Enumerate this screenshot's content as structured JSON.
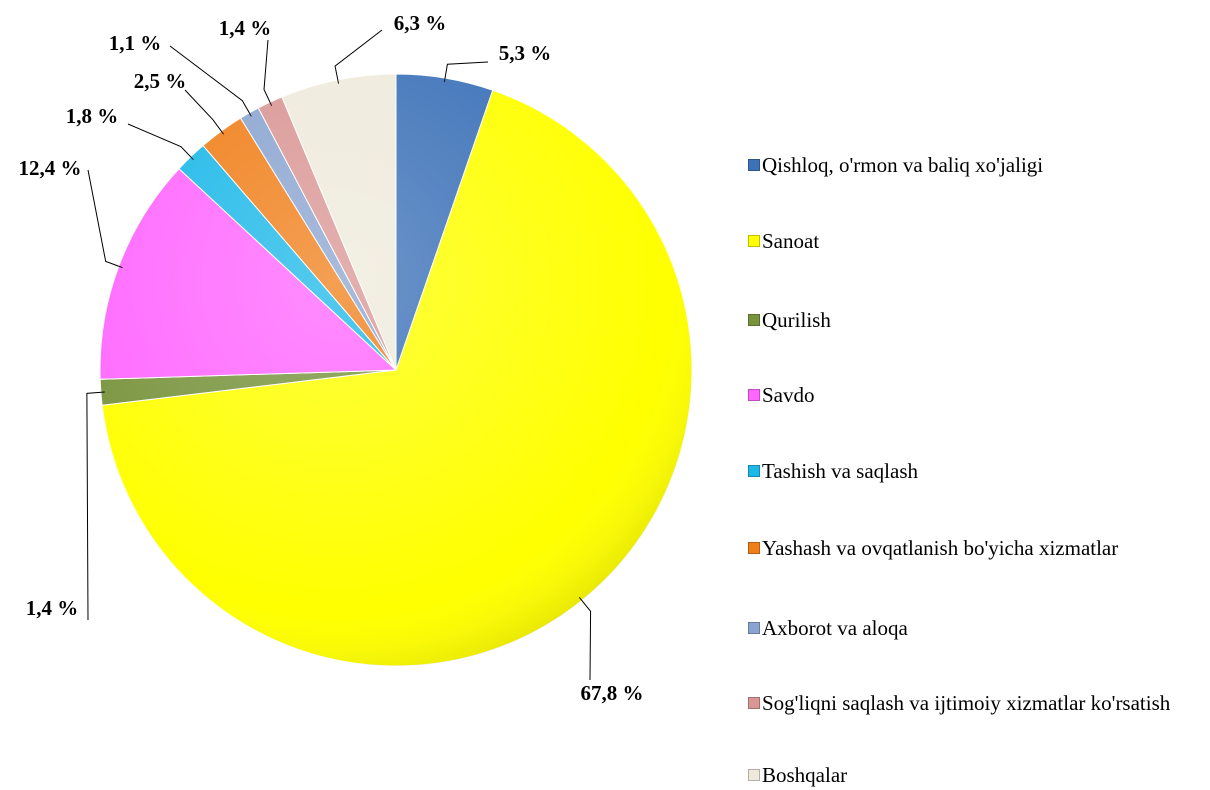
{
  "chart_data": {
    "type": "pie",
    "categories": [
      "Qishloq, o'rmon va baliq xo'jaligi",
      "Sanoat",
      "Qurilish",
      "Savdo",
      "Tashish va saqlash",
      "Yashash va ovqatlanish bo'yicha xizmatlar",
      "Axborot va aloqa",
      "Sog'liqni saqlash va ijtimoiy xizmatlar ko'rsatish",
      "Boshqalar"
    ],
    "values": [
      5.3,
      67.8,
      1.4,
      12.4,
      1.8,
      2.5,
      1.1,
      1.4,
      6.3
    ],
    "value_labels": [
      "5,3 %",
      "67,8 %",
      "1,4 %",
      "12,4 %",
      "1,8 %",
      "2,5 %",
      "1,1 %",
      "1,4 %",
      "6,3 %"
    ],
    "colors": [
      "#3d72b8",
      "#ffff00",
      "#77933c",
      "#ff66ff",
      "#1cb8e8",
      "#f07f1a",
      "#8aa4d0",
      "#d99694",
      "#eeeadb"
    ],
    "legend": "right"
  }
}
